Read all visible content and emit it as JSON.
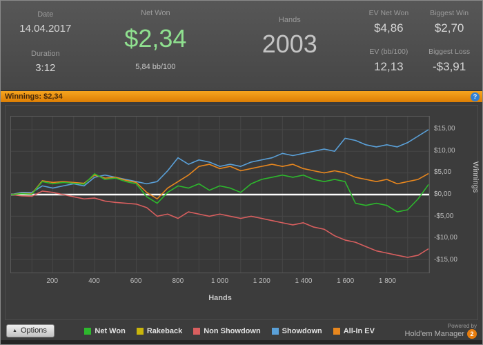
{
  "stats": {
    "date_label": "Date",
    "date_value": "14.04.2017",
    "duration_label": "Duration",
    "duration_value": "3:12",
    "net_won_label": "Net Won",
    "net_won_value": "$2,34",
    "net_won_sub": "5,84 bb/100",
    "hands_label": "Hands",
    "hands_value": "2003",
    "ev_net_won_label": "EV Net Won",
    "ev_net_won_value": "$4,86",
    "biggest_win_label": "Biggest Win",
    "biggest_win_value": "$2,70",
    "ev_bb_label": "EV (bb/100)",
    "ev_bb_value": "12,13",
    "biggest_loss_label": "Biggest Loss",
    "biggest_loss_value": "-$3,91"
  },
  "title_bar": {
    "label": "Winnings: $2,34",
    "help_glyph": "?"
  },
  "chart_data": {
    "type": "line",
    "title": "Winnings: $2,34",
    "xlabel": "Hands",
    "ylabel": "Winnings",
    "xlim": [
      0,
      2003
    ],
    "ylim": [
      -18,
      18
    ],
    "grid": true,
    "legend_position": "bottom",
    "x_ticks": [
      200,
      400,
      600,
      800,
      1000,
      1200,
      1400,
      1600,
      1800
    ],
    "x_tick_labels": [
      "200",
      "400",
      "600",
      "800",
      "1 000",
      "1 200",
      "1 400",
      "1 600",
      "1 800"
    ],
    "y_ticks": [
      15,
      10,
      5,
      0,
      -5,
      -10,
      -15
    ],
    "y_tick_labels": [
      "$15,00",
      "$10,00",
      "$5,00",
      "$0,00",
      "-$5,00",
      "-$10,00",
      "-$15,00"
    ],
    "zero_line_color": "#ffffff",
    "x": [
      0,
      50,
      100,
      150,
      200,
      250,
      300,
      350,
      400,
      450,
      500,
      550,
      600,
      650,
      700,
      750,
      800,
      850,
      900,
      950,
      1000,
      1050,
      1100,
      1150,
      1200,
      1250,
      1300,
      1350,
      1400,
      1450,
      1500,
      1550,
      1600,
      1650,
      1700,
      1750,
      1800,
      1850,
      1900,
      1950,
      2000
    ],
    "series": [
      {
        "name": "Rakeback",
        "color": "#c9b50b",
        "values": [
          0,
          0,
          0,
          0,
          0,
          0,
          0,
          0,
          0,
          0,
          0,
          0,
          0,
          0,
          0,
          0,
          0,
          0,
          0,
          0,
          0,
          0,
          0,
          0,
          0,
          0,
          0,
          0,
          0,
          0,
          0,
          0,
          0,
          0,
          0,
          0,
          0,
          0,
          0,
          0,
          0
        ]
      },
      {
        "name": "Non Showdown",
        "color": "#d95f5f",
        "values": [
          0,
          -0.3,
          -0.4,
          0.8,
          0.5,
          0,
          -0.5,
          -1,
          -0.8,
          -1.5,
          -1.8,
          -2,
          -2.2,
          -3,
          -5,
          -4.5,
          -5.5,
          -4,
          -4.5,
          -5,
          -4.5,
          -5,
          -5.5,
          -5,
          -5.5,
          -6,
          -6.5,
          -7,
          -6.5,
          -7.5,
          -8,
          -9.5,
          -10.5,
          -11,
          -12,
          -13,
          -13.5,
          -14,
          -14.5,
          -14,
          -12.5
        ]
      },
      {
        "name": "Showdown",
        "color": "#5aa0d8",
        "values": [
          0,
          0.5,
          0.5,
          2,
          1.5,
          2,
          2.5,
          2,
          4,
          4.5,
          4,
          3.5,
          3,
          2.5,
          3,
          5.5,
          8.5,
          7,
          8,
          7.5,
          6.5,
          7,
          6.5,
          7.5,
          8,
          8.5,
          9.5,
          9,
          9.5,
          10,
          10.5,
          10,
          13,
          12.5,
          11.5,
          11,
          11.5,
          11,
          12,
          13.5,
          15
        ]
      },
      {
        "name": "All-In EV",
        "color": "#e8871e",
        "values": [
          0,
          0.3,
          0.2,
          3.2,
          2.8,
          3,
          2.8,
          2.6,
          4.5,
          3.8,
          4,
          3.3,
          2.8,
          0.5,
          -1,
          1.5,
          3,
          4.5,
          6.5,
          7,
          6,
          6.5,
          5.5,
          6,
          6.5,
          7,
          6.5,
          7,
          6,
          5.5,
          5,
          5.5,
          5,
          4,
          3.5,
          3,
          3.5,
          2.5,
          3,
          3.5,
          4.86
        ]
      },
      {
        "name": "Net Won",
        "color": "#2db82d",
        "values": [
          0,
          0.2,
          0.1,
          3,
          2.5,
          2.8,
          2.6,
          2.4,
          4.8,
          3.5,
          3.8,
          3,
          2.5,
          -0.5,
          -2,
          0.5,
          2,
          1.5,
          2.5,
          1,
          2,
          1.5,
          0.5,
          2.5,
          3.5,
          4,
          4.5,
          4,
          4.5,
          3.5,
          3,
          3.5,
          3,
          -2,
          -2.5,
          -2,
          -2.5,
          -4,
          -3.5,
          -1,
          2.34
        ]
      }
    ]
  },
  "legend": [
    {
      "label": "Net Won",
      "color": "#2db82d"
    },
    {
      "label": "Rakeback",
      "color": "#c9b50b"
    },
    {
      "label": "Non Showdown",
      "color": "#d95f5f"
    },
    {
      "label": "Showdown",
      "color": "#5aa0d8"
    },
    {
      "label": "All-In EV",
      "color": "#e8871e"
    }
  ],
  "footer": {
    "options_label": "Options",
    "options_arrow": "▲",
    "powered_by": "Powered by",
    "brand": "Hold'em Manager",
    "brand_badge": "2"
  }
}
